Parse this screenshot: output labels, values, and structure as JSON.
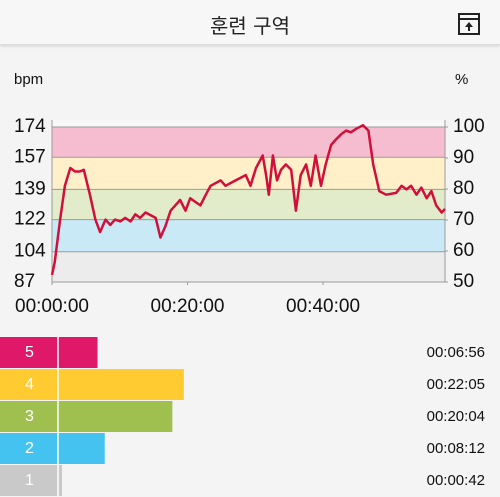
{
  "header": {
    "title": "훈련 구역"
  },
  "chart_data": [
    {
      "type": "line",
      "y_label": "bpm",
      "y2_label": "%",
      "x": [
        0,
        0.4,
        1.2,
        1.9,
        2.7,
        3.4,
        4.1,
        4.7,
        5.6,
        6.4,
        7.1,
        7.9,
        8.6,
        9.3,
        10.1,
        10.8,
        11.6,
        12.3,
        13.0,
        13.8,
        15.3,
        16.0,
        16.7,
        17.5,
        18.2,
        18.9,
        19.7,
        20.4,
        21.9,
        22.7,
        23.4,
        24.9,
        25.6,
        27.1,
        28.6,
        29.3,
        30.1,
        31.1,
        31.6,
        32.0,
        32.6,
        33.2,
        33.8,
        34.5,
        35.3,
        36.0,
        36.7,
        37.5,
        38.2,
        38.9,
        39.7,
        40.4,
        41.2,
        41.9,
        42.7,
        43.4,
        44.1,
        44.9,
        45.9,
        46.7,
        47.4,
        48.3,
        49.3,
        50.8,
        51.6,
        52.3,
        53.0,
        53.8,
        54.5,
        55.3,
        56.0,
        56.7,
        57.5,
        58
      ],
      "series": [
        {
          "name": "bpm",
          "color": "#d0103a",
          "values": [
            91,
            98,
            122,
            141,
            151,
            149,
            149,
            150,
            136,
            122,
            115,
            122,
            119,
            122,
            121,
            123,
            121,
            125,
            123,
            126,
            123,
            112,
            118,
            127,
            130,
            133,
            127,
            134,
            130,
            136,
            141,
            144,
            141,
            144,
            147,
            141,
            151,
            158,
            147,
            136,
            158,
            144,
            150,
            153,
            150,
            127,
            147,
            153,
            141,
            158,
            141,
            153,
            164,
            167,
            170,
            172,
            171,
            173,
            175,
            172,
            153,
            138,
            136,
            137,
            141,
            139,
            141,
            136,
            140,
            134,
            138,
            130,
            126,
            128
          ]
        }
      ],
      "xlim": [
        0,
        58
      ],
      "xticks": [
        {
          "value": 0,
          "label": "00:00:00"
        },
        {
          "value": 20,
          "label": "00:20:00"
        },
        {
          "value": 40,
          "label": "00:40:00"
        }
      ],
      "ylim": [
        87,
        174
      ],
      "yticks": [
        87,
        104,
        122,
        139,
        157,
        174
      ],
      "y2lim": [
        50,
        100
      ],
      "y2ticks": [
        50,
        60,
        70,
        80,
        90,
        100
      ],
      "band_colors": [
        "#ececec",
        "#c9e9f6",
        "#e3ecca",
        "#fff0c9",
        "#f6bdd1"
      ],
      "grid": true
    },
    {
      "type": "hbar",
      "categories": [
        "5",
        "4",
        "3",
        "2",
        "1"
      ],
      "values": [
        416,
        1325,
        1204,
        492,
        42
      ],
      "value_labels": [
        "00:06:56",
        "00:22:05",
        "00:20:04",
        "00:08:12",
        "00:00:42"
      ],
      "colors": [
        "#e0186a",
        "#ffcb30",
        "#9fbf4f",
        "#45c3f0",
        "#c9c9c9"
      ]
    }
  ]
}
